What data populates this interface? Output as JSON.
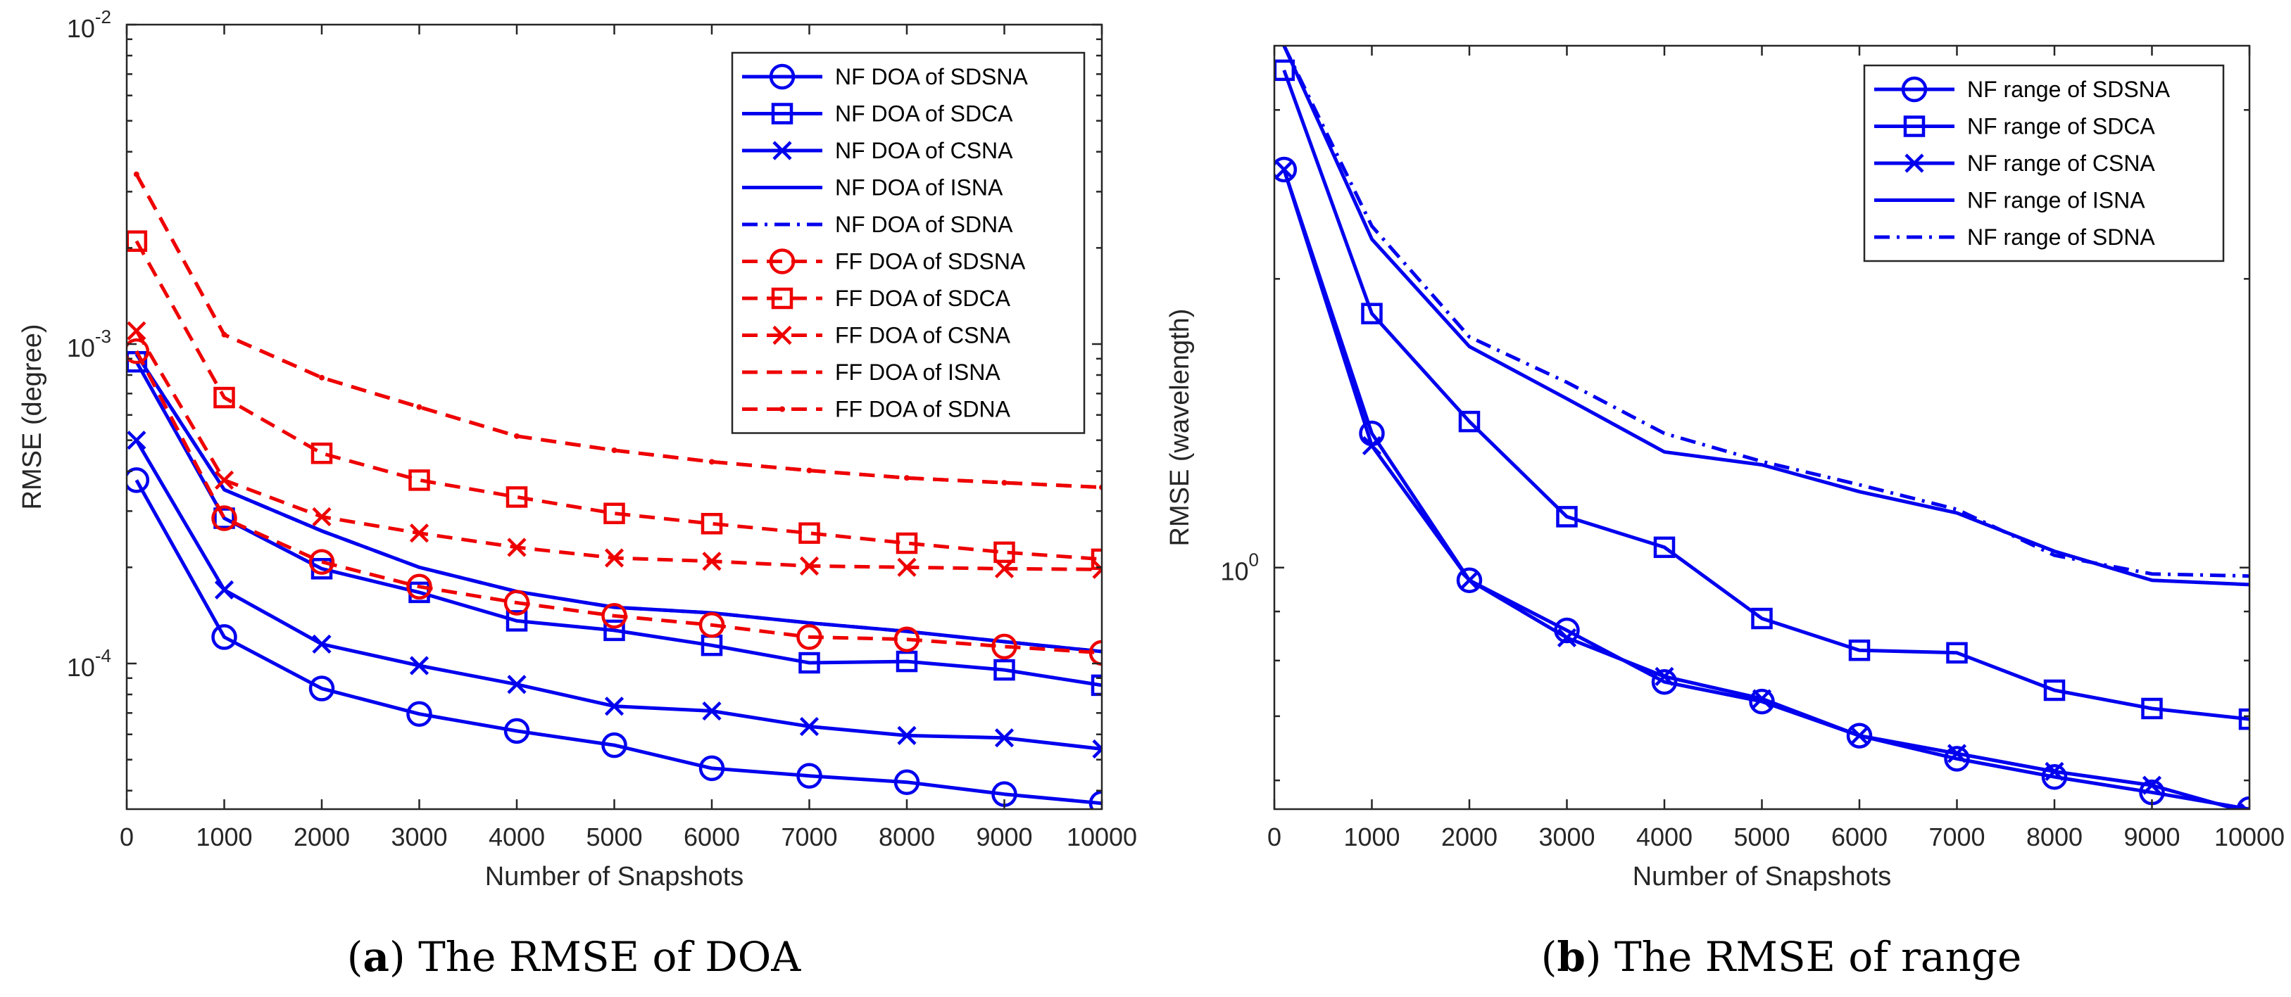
{
  "chart_data": [
    {
      "type": "line",
      "caption_tag": "a",
      "caption_text": "The RMSE of DOA",
      "xlabel": "Number of Snapshots",
      "ylabel": "RMSE (degree)",
      "yscale": "log",
      "xlim": [
        0,
        10000
      ],
      "ylim": [
        3.5e-05,
        0.01
      ],
      "x_ticks": [
        "0",
        "1000",
        "2000",
        "3000",
        "4000",
        "5000",
        "6000",
        "7000",
        "8000",
        "9000",
        "10000"
      ],
      "y_ticks": [
        {
          "value": 0.0001,
          "base": "10",
          "exp": "-4"
        },
        {
          "value": 0.001,
          "base": "10",
          "exp": "-3"
        },
        {
          "value": 0.01,
          "base": "10",
          "exp": "-2"
        }
      ],
      "legend_position": "top-right",
      "x": [
        100,
        1000,
        2000,
        3000,
        4000,
        5000,
        6000,
        7000,
        8000,
        9000,
        10000
      ],
      "series": [
        {
          "name": "NF DOA of SDSNA",
          "color": "#0000ee",
          "dash": "solid",
          "marker": "circle",
          "values": [
            0.000375,
            0.000121,
            8.35e-05,
            6.95e-05,
            6.15e-05,
            5.55e-05,
            4.7e-05,
            4.45e-05,
            4.25e-05,
            3.9e-05,
            3.65e-05
          ]
        },
        {
          "name": "NF DOA of SDCA",
          "color": "#0000ee",
          "dash": "solid",
          "marker": "square",
          "values": [
            0.00088,
            0.000285,
            0.000198,
            0.000167,
            0.000136,
            0.000127,
            0.000114,
            0.0001005,
            0.0001015,
            9.55e-05,
            8.55e-05
          ]
        },
        {
          "name": "NF DOA of CSNA",
          "color": "#0000ee",
          "dash": "solid",
          "marker": "x",
          "values": [
            0.0005,
            0.00017,
            0.000115,
            9.85e-05,
            8.6e-05,
            7.35e-05,
            7.1e-05,
            6.35e-05,
            5.95e-05,
            5.85e-05,
            5.4e-05
          ]
        },
        {
          "name": "NF DOA of ISNA",
          "color": "#0000ee",
          "dash": "solid",
          "marker": "none",
          "values": [
            0.00093,
            0.00035,
            0.00026,
            0.0002,
            0.000168,
            0.00015,
            0.000144,
            0.000134,
            0.000126,
            0.000117,
            0.000109
          ]
        },
        {
          "name": "NF DOA of SDNA",
          "color": "#0000ee",
          "dash": "dashdot",
          "marker": "none",
          "values": [
            0.00093,
            0.00035,
            0.00026,
            0.0002,
            0.000168,
            0.00015,
            0.000144,
            0.000134,
            0.000126,
            0.000117,
            0.000109
          ]
        },
        {
          "name": "FF DOA of SDSNA",
          "color": "#ee0000",
          "dash": "dashed",
          "marker": "circle",
          "values": [
            0.00095,
            0.000285,
            0.000208,
            0.000174,
            0.000155,
            0.000141,
            0.000132,
            0.000121,
            0.000119,
            0.000113,
            0.000108
          ]
        },
        {
          "name": "FF DOA of SDCA",
          "color": "#ee0000",
          "dash": "dashed",
          "marker": "square",
          "values": [
            0.0021,
            0.00068,
            0.000455,
            0.000375,
            0.000332,
            0.000295,
            0.000274,
            0.000256,
            0.000238,
            0.000223,
            0.000212
          ]
        },
        {
          "name": "FF DOA of CSNA",
          "color": "#ee0000",
          "dash": "dashed",
          "marker": "x",
          "values": [
            0.0011,
            0.000375,
            0.000288,
            0.000256,
            0.000231,
            0.000214,
            0.000209,
            0.000202,
            0.0002,
            0.000198,
            0.000197
          ]
        },
        {
          "name": "FF DOA of ISNA",
          "color": "#ee0000",
          "dash": "dashed",
          "marker": "none",
          "values": [
            0.0034,
            0.00107,
            0.000785,
            0.000635,
            0.000515,
            0.000465,
            0.000428,
            0.000402,
            0.000381,
            0.000368,
            0.000356
          ]
        },
        {
          "name": "FF DOA of SDNA",
          "color": "#ee0000",
          "dash": "dashed",
          "marker": "dot",
          "values": [
            0.0034,
            0.00107,
            0.000785,
            0.000635,
            0.000515,
            0.000465,
            0.000428,
            0.000402,
            0.000381,
            0.000368,
            0.000356
          ]
        }
      ]
    },
    {
      "type": "line",
      "caption_tag": "b",
      "caption_text": "The RMSE of range",
      "xlabel": "Number of Snapshots",
      "ylabel": "RMSE (wavelength)",
      "yscale": "log",
      "xlim": [
        0,
        10000
      ],
      "ylim": [
        0.56,
        3.5
      ],
      "x_ticks": [
        "0",
        "1000",
        "2000",
        "3000",
        "4000",
        "5000",
        "6000",
        "7000",
        "8000",
        "9000",
        "10000"
      ],
      "y_ticks": [
        {
          "value": 1,
          "base": "10",
          "exp": "0"
        }
      ],
      "legend_position": "top-right",
      "x": [
        100,
        1000,
        2000,
        3000,
        4000,
        5000,
        6000,
        7000,
        8000,
        9000,
        10000
      ],
      "series": [
        {
          "name": "NF range of SDSNA",
          "color": "#0000ee",
          "dash": "solid",
          "marker": "circle",
          "values": [
            2.6,
            1.38,
            0.97,
            0.86,
            0.76,
            0.725,
            0.668,
            0.632,
            0.605,
            0.583,
            0.56
          ]
        },
        {
          "name": "NF range of SDCA",
          "color": "#0000ee",
          "dash": "solid",
          "marker": "square",
          "values": [
            3.3,
            1.84,
            1.42,
            1.13,
            1.05,
            0.885,
            0.82,
            0.815,
            0.745,
            0.713,
            0.695
          ]
        },
        {
          "name": "NF range of CSNA",
          "color": "#0000ee",
          "dash": "solid",
          "marker": "x",
          "values": [
            2.6,
            1.34,
            0.97,
            0.845,
            0.77,
            0.73,
            0.668,
            0.64,
            0.613,
            0.593,
            0.555
          ]
        },
        {
          "name": "NF range of ISNA",
          "color": "#0000ee",
          "dash": "solid",
          "marker": "none",
          "values": [
            3.5,
            2.2,
            1.7,
            1.5,
            1.32,
            1.28,
            1.2,
            1.14,
            1.04,
            0.97,
            0.96
          ]
        },
        {
          "name": "NF range of SDNA",
          "color": "#0000ee",
          "dash": "dashdot",
          "marker": "none",
          "values": [
            3.5,
            2.27,
            1.74,
            1.56,
            1.38,
            1.29,
            1.22,
            1.15,
            1.03,
            0.985,
            0.98
          ]
        }
      ]
    }
  ]
}
